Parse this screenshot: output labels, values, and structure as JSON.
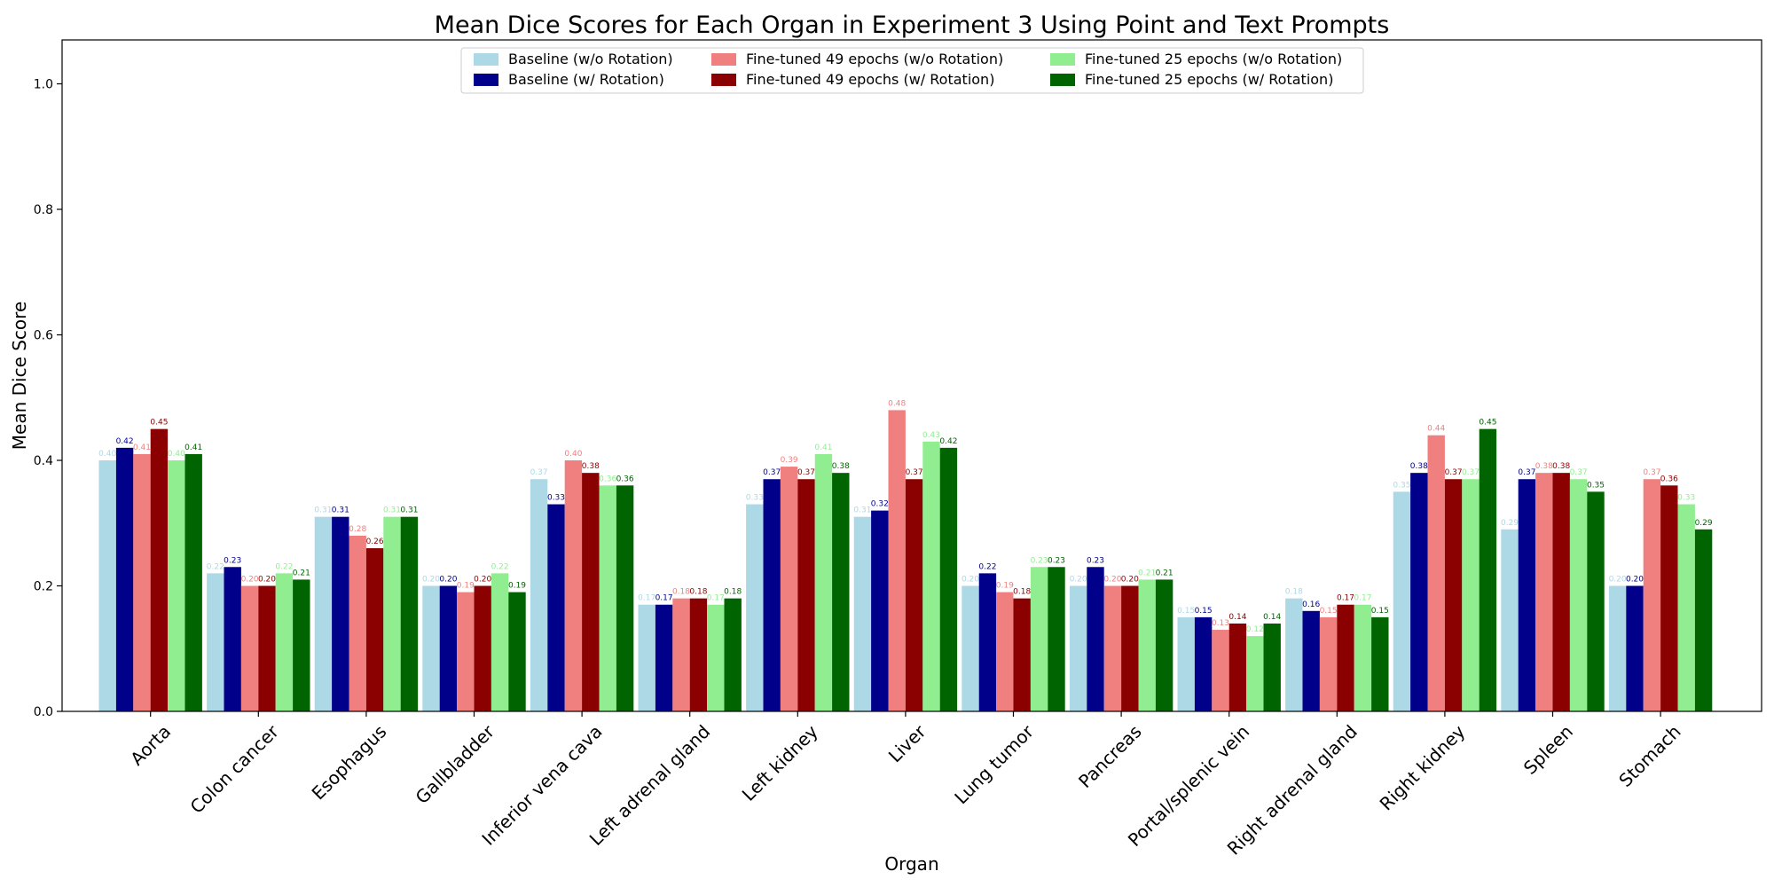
{
  "chart_data": {
    "type": "bar",
    "title": "Mean Dice Scores for Each Organ in Experiment 3 Using Point and Text Prompts",
    "xlabel": "Organ",
    "ylabel": "Mean Dice Score",
    "ylim": [
      0,
      1.07
    ],
    "yticks": [
      "0.0",
      "0.2",
      "0.4",
      "0.6",
      "0.8",
      "1.0"
    ],
    "ytick_values": [
      0,
      0.2,
      0.4,
      0.6,
      0.8,
      1.0
    ],
    "grid": false,
    "legend_position": "top-center",
    "categories": [
      "Aorta",
      "Colon cancer",
      "Esophagus",
      "Gallbladder",
      "Inferior vena cava",
      "Left adrenal gland",
      "Left kidney",
      "Liver",
      "Lung tumor",
      "Pancreas",
      "Portal/splenic vein",
      "Right adrenal gland",
      "Right kidney",
      "Spleen",
      "Stomach"
    ],
    "series": [
      {
        "name": "Baseline (w/o Rotation)",
        "color": "#add8e6",
        "values": [
          0.4,
          0.22,
          0.31,
          0.2,
          0.37,
          0.17,
          0.33,
          0.31,
          0.2,
          0.2,
          0.15,
          0.18,
          0.35,
          0.29,
          0.2
        ],
        "labels": [
          "0.40",
          "0.22",
          "0.31",
          "0.20",
          "0.37",
          "0.17",
          "0.33",
          "0.31",
          "0.20",
          "0.20",
          "0.15",
          "0.18",
          "0.35",
          "0.29",
          "0.20"
        ]
      },
      {
        "name": "Baseline (w/ Rotation)",
        "color": "#00008b",
        "values": [
          0.42,
          0.23,
          0.31,
          0.2,
          0.33,
          0.17,
          0.37,
          0.32,
          0.22,
          0.23,
          0.15,
          0.16,
          0.38,
          0.37,
          0.2
        ],
        "labels": [
          "0.42",
          "0.23",
          "0.31",
          "0.20",
          "0.33",
          "0.17",
          "0.37",
          "0.32",
          "0.22",
          "0.23",
          "0.15",
          "0.16",
          "0.38",
          "0.37",
          "0.20"
        ]
      },
      {
        "name": "Fine-tuned 49 epochs (w/o Rotation)",
        "color": "#f08080",
        "values": [
          0.41,
          0.2,
          0.28,
          0.19,
          0.4,
          0.18,
          0.39,
          0.48,
          0.19,
          0.2,
          0.13,
          0.15,
          0.44,
          0.38,
          0.37
        ],
        "labels": [
          "0.41",
          "0.20",
          "0.28",
          "0.19",
          "0.40",
          "0.18",
          "0.39",
          "0.48",
          "0.19",
          "0.20",
          "0.13",
          "0.15",
          "0.44",
          "0.38",
          "0.37"
        ]
      },
      {
        "name": "Fine-tuned 49 epochs (w/ Rotation)",
        "color": "#8b0000",
        "values": [
          0.45,
          0.2,
          0.26,
          0.2,
          0.38,
          0.18,
          0.37,
          0.37,
          0.18,
          0.2,
          0.14,
          0.17,
          0.37,
          0.38,
          0.36
        ],
        "labels": [
          "0.45",
          "0.20",
          "0.26",
          "0.20",
          "0.38",
          "0.18",
          "0.37",
          "0.37",
          "0.18",
          "0.20",
          "0.14",
          "0.17",
          "0.37",
          "0.38",
          "0.36"
        ]
      },
      {
        "name": "Fine-tuned 25 epochs (w/o Rotation)",
        "color": "#90ee90",
        "values": [
          0.4,
          0.22,
          0.31,
          0.22,
          0.36,
          0.17,
          0.41,
          0.43,
          0.23,
          0.21,
          0.12,
          0.17,
          0.37,
          0.37,
          0.33
        ],
        "labels": [
          "0.40",
          "0.22",
          "0.31",
          "0.22",
          "0.36",
          "0.17",
          "0.41",
          "0.43",
          "0.23",
          "0.21",
          "0.12",
          "0.17",
          "0.37",
          "0.37",
          "0.33"
        ]
      },
      {
        "name": "Fine-tuned 25 epochs (w/ Rotation)",
        "color": "#006400",
        "values": [
          0.41,
          0.21,
          0.31,
          0.19,
          0.36,
          0.18,
          0.38,
          0.42,
          0.23,
          0.21,
          0.14,
          0.15,
          0.45,
          0.35,
          0.29
        ],
        "labels": [
          "0.41",
          "0.21",
          "0.31",
          "0.19",
          "0.36",
          "0.18",
          "0.38",
          "0.42",
          "0.23",
          "0.21",
          "0.14",
          "0.15",
          "0.45",
          "0.35",
          "0.29"
        ]
      }
    ]
  }
}
